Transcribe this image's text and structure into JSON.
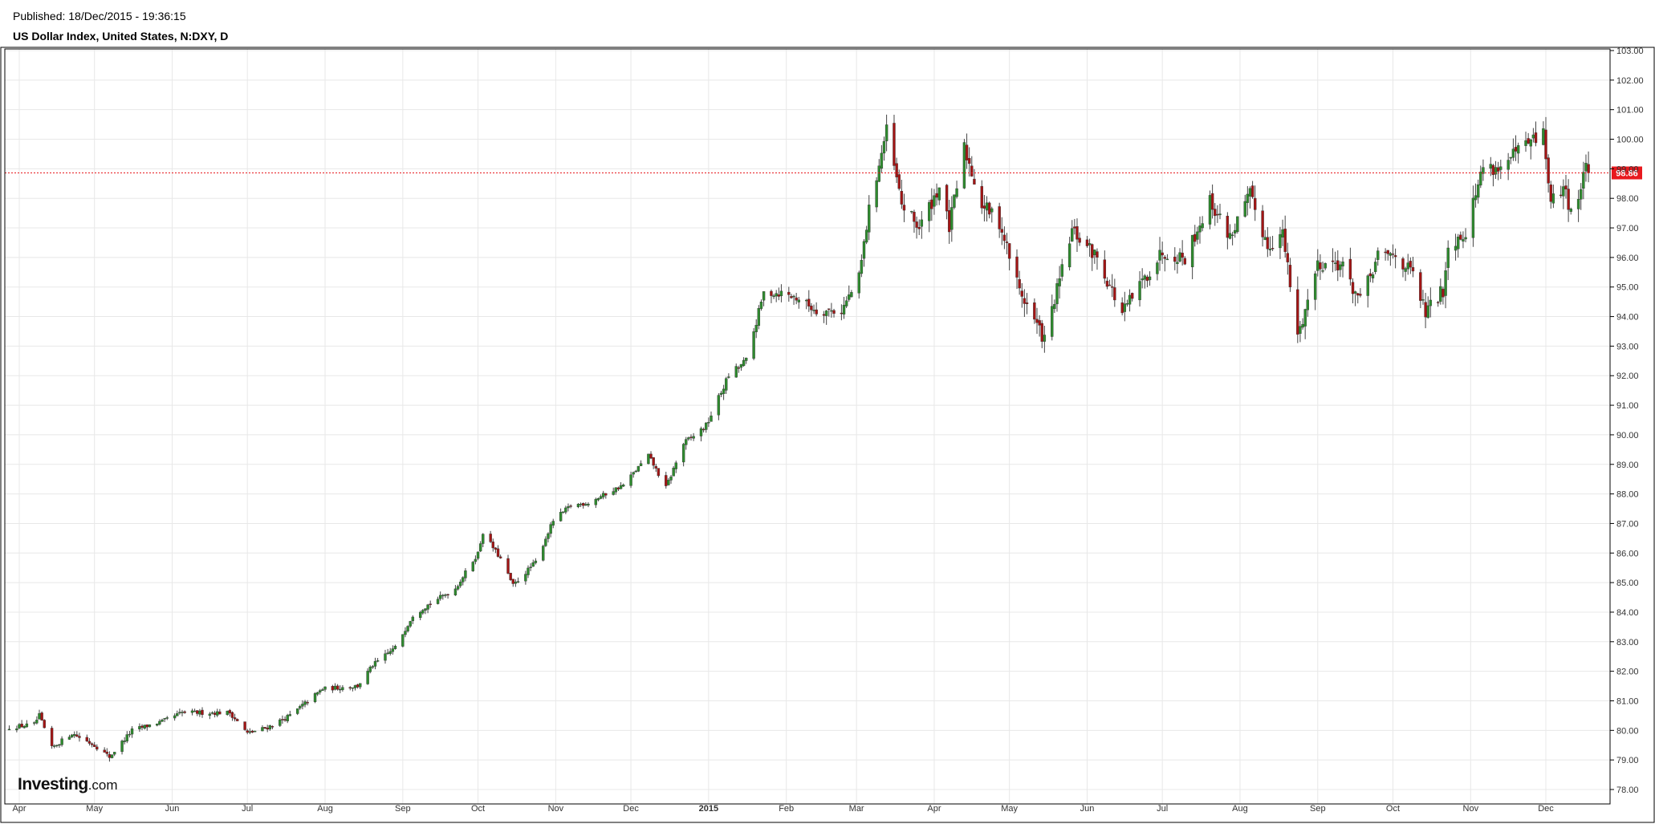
{
  "header": {
    "published": "Published: 18/Dec/2015 - 19:36:15",
    "title": "US Dollar Index, United States, N:DXY, D"
  },
  "logo": {
    "brand": "Investing",
    "suffix": ".com"
  },
  "colors": {
    "up": "#2e8b2e",
    "down": "#a31515",
    "last_price": "#e8191e",
    "grid": "#e8e8e8",
    "axis": "#000000"
  },
  "chart_data": {
    "type": "candlestick",
    "title": "US Dollar Index, United States, N:DXY, D",
    "interval": "D",
    "ylim": [
      77.5,
      103.1
    ],
    "yticks": [
      "78.00",
      "79.00",
      "80.00",
      "81.00",
      "82.00",
      "83.00",
      "84.00",
      "85.00",
      "86.00",
      "87.00",
      "88.00",
      "89.00",
      "90.00",
      "91.00",
      "92.00",
      "93.00",
      "94.00",
      "95.00",
      "96.00",
      "97.00",
      "98.00",
      "99.00",
      "100.00",
      "101.00",
      "102.00",
      "103.00"
    ],
    "xticks": [
      {
        "label": "Apr",
        "date": "2014-04-01"
      },
      {
        "label": "May",
        "date": "2014-05-01"
      },
      {
        "label": "Jun",
        "date": "2014-06-01"
      },
      {
        "label": "Jul",
        "date": "2014-07-01"
      },
      {
        "label": "Aug",
        "date": "2014-08-01"
      },
      {
        "label": "Sep",
        "date": "2014-09-01"
      },
      {
        "label": "Oct",
        "date": "2014-10-01"
      },
      {
        "label": "Nov",
        "date": "2014-11-01"
      },
      {
        "label": "Dec",
        "date": "2014-12-01"
      },
      {
        "label": "2015",
        "date": "2015-01-01",
        "bold": true
      },
      {
        "label": "Feb",
        "date": "2015-02-01"
      },
      {
        "label": "Mar",
        "date": "2015-03-01"
      },
      {
        "label": "Apr",
        "date": "2015-04-01"
      },
      {
        "label": "May",
        "date": "2015-05-01"
      },
      {
        "label": "Jun",
        "date": "2015-06-01"
      },
      {
        "label": "Jul",
        "date": "2015-07-01"
      },
      {
        "label": "Aug",
        "date": "2015-08-01"
      },
      {
        "label": "Sep",
        "date": "2015-09-01"
      },
      {
        "label": "Oct",
        "date": "2015-10-01"
      },
      {
        "label": "Nov",
        "date": "2015-11-01"
      },
      {
        "label": "Dec",
        "date": "2015-12-01"
      }
    ],
    "last_price": "98.86",
    "close_points": [
      {
        "date": "2014-03-28",
        "close": 80.1
      },
      {
        "date": "2014-04-07",
        "close": 80.2
      },
      {
        "date": "2014-04-09",
        "close": 80.5
      },
      {
        "date": "2014-04-14",
        "close": 79.4
      },
      {
        "date": "2014-04-22",
        "close": 79.9
      },
      {
        "date": "2014-05-01",
        "close": 79.5
      },
      {
        "date": "2014-05-07",
        "close": 79.1
      },
      {
        "date": "2014-05-16",
        "close": 80.0
      },
      {
        "date": "2014-05-28",
        "close": 80.3
      },
      {
        "date": "2014-06-05",
        "close": 80.6
      },
      {
        "date": "2014-06-13",
        "close": 80.6
      },
      {
        "date": "2014-06-24",
        "close": 80.6
      },
      {
        "date": "2014-07-01",
        "close": 79.9
      },
      {
        "date": "2014-07-09",
        "close": 80.1
      },
      {
        "date": "2014-07-18",
        "close": 80.5
      },
      {
        "date": "2014-07-31",
        "close": 81.4
      },
      {
        "date": "2014-08-14",
        "close": 81.5
      },
      {
        "date": "2014-08-20",
        "close": 82.2
      },
      {
        "date": "2014-08-29",
        "close": 82.8
      },
      {
        "date": "2014-09-05",
        "close": 83.9
      },
      {
        "date": "2014-09-12",
        "close": 84.3
      },
      {
        "date": "2014-09-22",
        "close": 84.8
      },
      {
        "date": "2014-10-01",
        "close": 86.0
      },
      {
        "date": "2014-10-03",
        "close": 86.7
      },
      {
        "date": "2014-10-10",
        "close": 85.8
      },
      {
        "date": "2014-10-15",
        "close": 84.9
      },
      {
        "date": "2014-10-24",
        "close": 85.7
      },
      {
        "date": "2014-10-31",
        "close": 87.1
      },
      {
        "date": "2014-11-07",
        "close": 87.6
      },
      {
        "date": "2014-11-14",
        "close": 87.7
      },
      {
        "date": "2014-11-21",
        "close": 88.0
      },
      {
        "date": "2014-11-28",
        "close": 88.3
      },
      {
        "date": "2014-12-08",
        "close": 89.3
      },
      {
        "date": "2014-12-15",
        "close": 88.2
      },
      {
        "date": "2014-12-22",
        "close": 89.7
      },
      {
        "date": "2014-12-31",
        "close": 90.3
      },
      {
        "date": "2015-01-09",
        "close": 92.0
      },
      {
        "date": "2015-01-16",
        "close": 92.5
      },
      {
        "date": "2015-01-23",
        "close": 94.8
      },
      {
        "date": "2015-01-30",
        "close": 94.8
      },
      {
        "date": "2015-02-06",
        "close": 94.6
      },
      {
        "date": "2015-02-13",
        "close": 94.2
      },
      {
        "date": "2015-02-23",
        "close": 94.2
      },
      {
        "date": "2015-03-02",
        "close": 95.3
      },
      {
        "date": "2015-03-06",
        "close": 97.6
      },
      {
        "date": "2015-03-13",
        "close": 100.3
      },
      {
        "date": "2015-03-19",
        "close": 97.8
      },
      {
        "date": "2015-03-26",
        "close": 97.0
      },
      {
        "date": "2015-04-03",
        "close": 98.4
      },
      {
        "date": "2015-04-07",
        "close": 97.0
      },
      {
        "date": "2015-04-13",
        "close": 99.7
      },
      {
        "date": "2015-04-20",
        "close": 97.8
      },
      {
        "date": "2015-04-27",
        "close": 97.2
      },
      {
        "date": "2015-05-05",
        "close": 94.9
      },
      {
        "date": "2015-05-15",
        "close": 93.2
      },
      {
        "date": "2015-05-26",
        "close": 96.9
      },
      {
        "date": "2015-06-05",
        "close": 96.0
      },
      {
        "date": "2015-06-15",
        "close": 94.1
      },
      {
        "date": "2015-06-24",
        "close": 95.3
      },
      {
        "date": "2015-07-01",
        "close": 96.2
      },
      {
        "date": "2015-07-10",
        "close": 96.0
      },
      {
        "date": "2015-07-20",
        "close": 97.9
      },
      {
        "date": "2015-07-28",
        "close": 96.7
      },
      {
        "date": "2015-08-05",
        "close": 98.1
      },
      {
        "date": "2015-08-12",
        "close": 96.4
      },
      {
        "date": "2015-08-18",
        "close": 96.8
      },
      {
        "date": "2015-08-24",
        "close": 93.3
      },
      {
        "date": "2015-09-01",
        "close": 95.8
      },
      {
        "date": "2015-09-10",
        "close": 95.8
      },
      {
        "date": "2015-09-18",
        "close": 94.5
      },
      {
        "date": "2015-09-25",
        "close": 96.0
      },
      {
        "date": "2015-10-02",
        "close": 96.1
      },
      {
        "date": "2015-10-09",
        "close": 95.4
      },
      {
        "date": "2015-10-14",
        "close": 94.1
      },
      {
        "date": "2015-10-21",
        "close": 94.9
      },
      {
        "date": "2015-10-23",
        "close": 96.4
      },
      {
        "date": "2015-10-30",
        "close": 96.9
      },
      {
        "date": "2015-11-06",
        "close": 99.1
      },
      {
        "date": "2015-11-13",
        "close": 99.0
      },
      {
        "date": "2015-11-20",
        "close": 99.6
      },
      {
        "date": "2015-11-30",
        "close": 100.2
      },
      {
        "date": "2015-12-03",
        "close": 97.8
      },
      {
        "date": "2015-12-08",
        "close": 98.4
      },
      {
        "date": "2015-12-11",
        "close": 97.6
      },
      {
        "date": "2015-12-15",
        "close": 98.2
      },
      {
        "date": "2015-12-17",
        "close": 99.3
      },
      {
        "date": "2015-12-18",
        "close": 98.86
      }
    ]
  }
}
